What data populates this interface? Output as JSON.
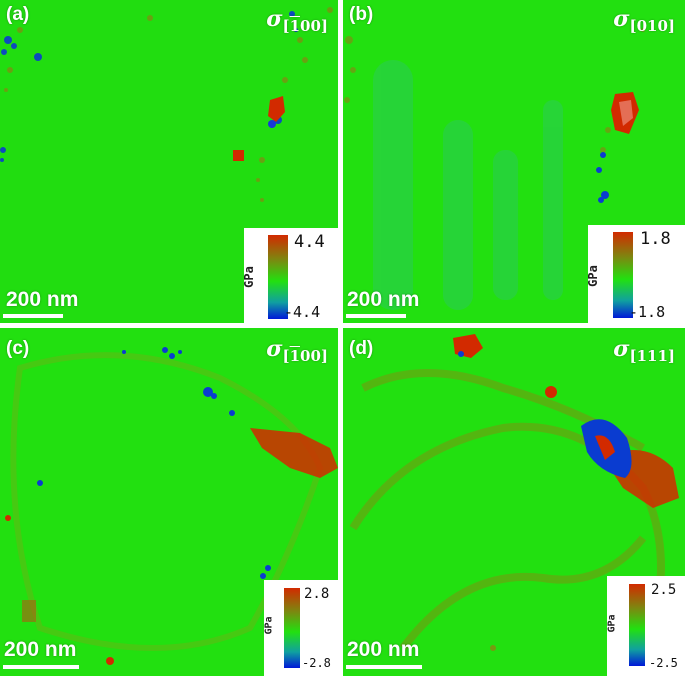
{
  "panels": [
    {
      "label": "(a)",
      "sigma_symbol": "σ",
      "direction_prefix": "[",
      "direction_bar": "1",
      "direction_rest": "00]",
      "scale_text": "200  nm",
      "colorbar": {
        "unit": "GPa",
        "max": "4.4",
        "min": "-4.4"
      }
    },
    {
      "label": "(b)",
      "sigma_symbol": "σ",
      "direction_prefix": "[",
      "direction_bar": "",
      "direction_rest": "010]",
      "scale_text": "200  nm",
      "colorbar": {
        "unit": "GPa",
        "max": "1.8",
        "min": "-1.8"
      }
    },
    {
      "label": "(c)",
      "sigma_symbol": "σ",
      "direction_prefix": "[",
      "direction_bar": "1",
      "direction_rest": "00]",
      "scale_text": "200  nm",
      "colorbar": {
        "unit": "GPa",
        "max": "2.8",
        "min": "-2.8"
      }
    },
    {
      "label": "(d)",
      "sigma_symbol": "σ",
      "direction_prefix": "[",
      "direction_bar": "",
      "direction_rest": "111]",
      "scale_text": "200  nm",
      "colorbar": {
        "unit": "GPa",
        "max": "2.5",
        "min": "-2.5"
      }
    }
  ],
  "colors": {
    "background_green": "#22e010",
    "tensile_red": "#d22a00",
    "compressive_blue": "#0018d8"
  }
}
